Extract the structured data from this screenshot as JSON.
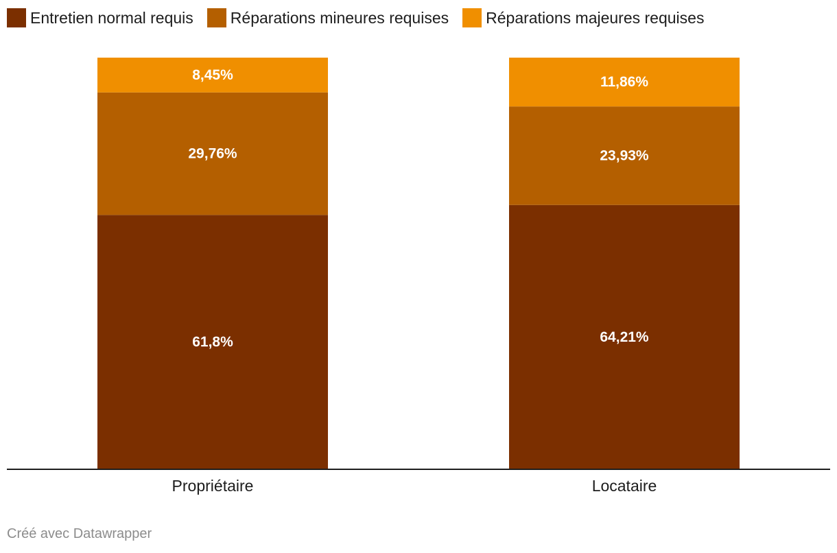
{
  "chart_data": {
    "type": "bar",
    "stacked": true,
    "orientation": "vertical",
    "categories": [
      "Propriétaire",
      "Locataire"
    ],
    "series": [
      {
        "name": "Entretien normal requis",
        "values": [
          61.8,
          64.21
        ],
        "labels": [
          "61,8%",
          "64,21%"
        ],
        "color": "#7b2f00"
      },
      {
        "name": "Réparations mineures requises",
        "values": [
          29.76,
          23.93
        ],
        "labels": [
          "29,76%",
          "23,93%"
        ],
        "color": "#b45f00"
      },
      {
        "name": "Réparations majeures requises",
        "values": [
          8.45,
          11.86
        ],
        "labels": [
          "8,45%",
          "11,86%"
        ],
        "color": "#f08f00"
      }
    ],
    "ylim": [
      0,
      100
    ],
    "grid": false,
    "legend_position": "top-left"
  },
  "footer": {
    "credit": "Créé avec Datawrapper"
  }
}
